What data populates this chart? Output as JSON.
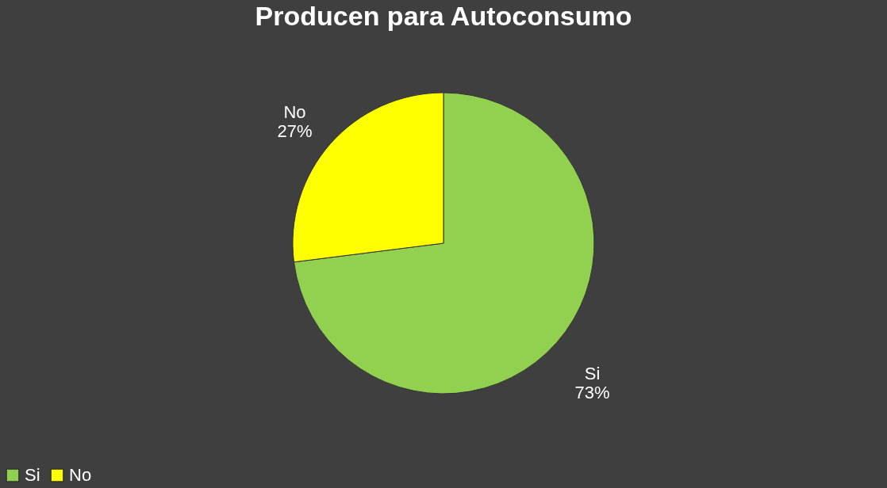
{
  "chart_data": {
    "type": "pie",
    "title": "Producen para Autoconsumo",
    "categories": [
      "Si",
      "No"
    ],
    "values": [
      73,
      27
    ],
    "colors": [
      "#92d050",
      "#ffff00"
    ],
    "value_labels": [
      "73%",
      "27%"
    ],
    "legend": "bottom"
  }
}
